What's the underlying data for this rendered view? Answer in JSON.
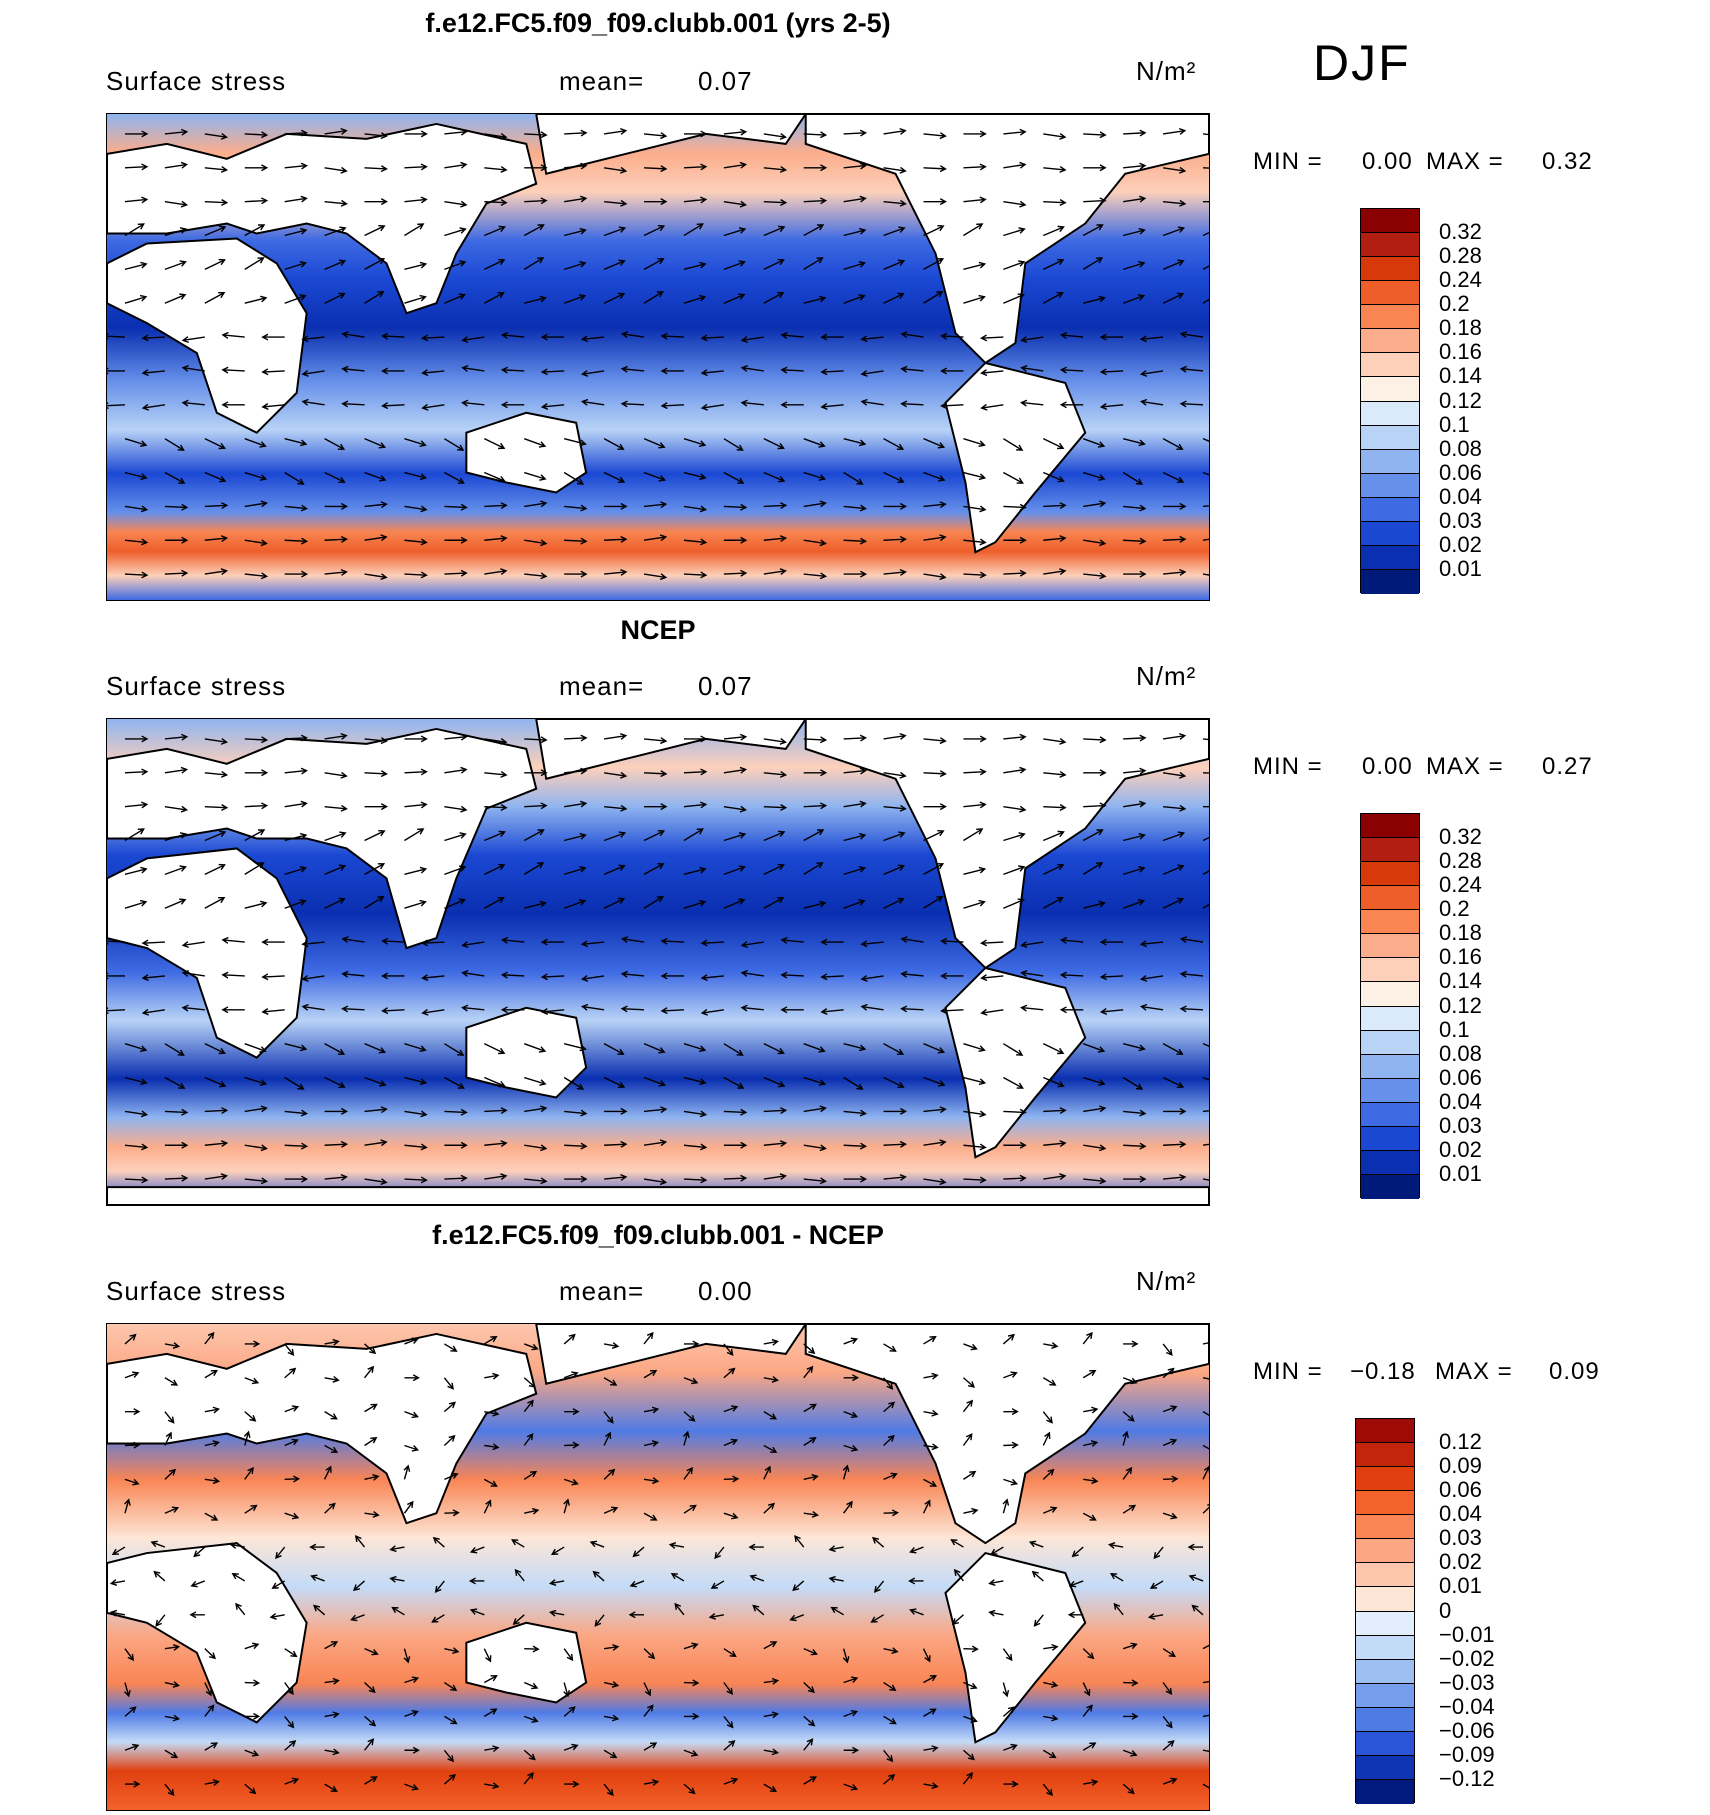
{
  "season": "DJF",
  "units": "N/m²",
  "panels": [
    {
      "title": "f.e12.FC5.f09_f09.clubb.001 (yrs 2-5)",
      "variable": "Surface stress",
      "mean_label": "mean=",
      "mean_value": "0.07",
      "units": "N/m²",
      "min_label": "MIN =",
      "min_value": "0.00",
      "max_label": "MAX =",
      "max_value": "0.32",
      "colorbar_labels": [
        "0.32",
        "0.28",
        "0.24",
        "0.2",
        "0.18",
        "0.16",
        "0.14",
        "0.12",
        "0.1",
        "0.08",
        "0.06",
        "0.04",
        "0.03",
        "0.02",
        "0.01"
      ],
      "colorbar_colors": [
        "#8b0000",
        "#b21e12",
        "#d8390b",
        "#ee5e2a",
        "#f88552",
        "#fbad8b",
        "#fdd0ba",
        "#fdf0e4",
        "#dbeafb",
        "#b8d3f6",
        "#8fb4f0",
        "#6690ea",
        "#3e6ae3",
        "#1b48d3",
        "#0a2fb0",
        "#001a7a"
      ]
    },
    {
      "title": "NCEP",
      "variable": "Surface stress",
      "mean_label": "mean=",
      "mean_value": "0.07",
      "units": "N/m²",
      "min_label": "MIN =",
      "min_value": "0.00",
      "max_label": "MAX =",
      "max_value": "0.27",
      "colorbar_labels": [
        "0.32",
        "0.28",
        "0.24",
        "0.2",
        "0.18",
        "0.16",
        "0.14",
        "0.12",
        "0.1",
        "0.08",
        "0.06",
        "0.04",
        "0.03",
        "0.02",
        "0.01"
      ],
      "colorbar_colors": [
        "#8b0000",
        "#b21e12",
        "#d8390b",
        "#ee5e2a",
        "#f88552",
        "#fbad8b",
        "#fdd0ba",
        "#fdf0e4",
        "#dbeafb",
        "#b8d3f6",
        "#8fb4f0",
        "#6690ea",
        "#3e6ae3",
        "#1b48d3",
        "#0a2fb0",
        "#001a7a"
      ]
    },
    {
      "title": "f.e12.FC5.f09_f09.clubb.001 - NCEP",
      "variable": "Surface stress",
      "mean_label": "mean=",
      "mean_value": "0.00",
      "units": "N/m²",
      "min_label": "MIN =",
      "min_value": "−0.18",
      "max_label": "MAX =",
      "max_value": "0.09",
      "colorbar_labels": [
        "0.12",
        "0.09",
        "0.06",
        "0.04",
        "0.03",
        "0.02",
        "0.01",
        "0",
        "−0.01",
        "−0.02",
        "−0.03",
        "−0.04",
        "−0.06",
        "−0.09",
        "−0.12"
      ],
      "colorbar_colors": [
        "#9e0a05",
        "#c2250c",
        "#e0400f",
        "#f4622b",
        "#f98555",
        "#fba784",
        "#fdc7ad",
        "#fde6d6",
        "#e2eefb",
        "#c4dbf7",
        "#9ebff2",
        "#779eec",
        "#4f7be5",
        "#2a55d9",
        "#0f35b5",
        "#001b7d"
      ]
    }
  ]
}
